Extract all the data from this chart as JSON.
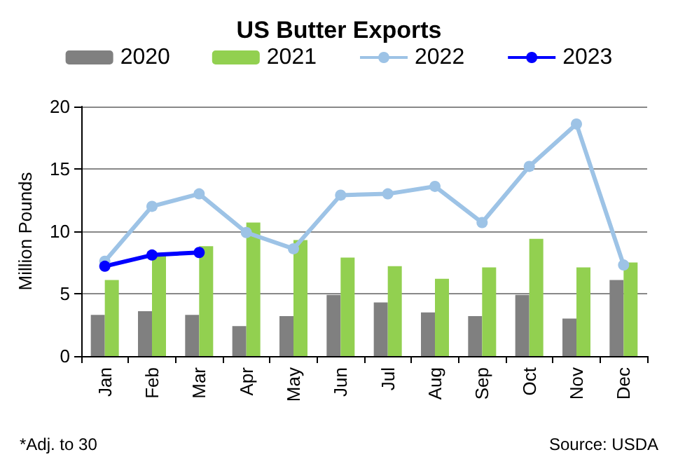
{
  "chart_data": {
    "type": "bar",
    "title": "US Butter Exports",
    "ylabel": "Million Pounds",
    "categories": [
      "Jan",
      "Feb",
      "Mar",
      "Apr",
      "May",
      "Jun",
      "Jul",
      "Aug",
      "Sep",
      "Oct",
      "Nov",
      "Dec"
    ],
    "series": [
      {
        "name": "2020",
        "color": "#808080",
        "values": [
          3.3,
          3.6,
          3.3,
          2.4,
          3.2,
          4.9,
          4.3,
          3.5,
          3.2,
          4.9,
          3.0,
          6.1
        ]
      },
      {
        "name": "2021",
        "color": "#92d050",
        "values": [
          6.1,
          8.1,
          8.8,
          10.7,
          9.3,
          7.9,
          7.2,
          6.2,
          7.1,
          9.4,
          7.1,
          7.5
        ]
      },
      {
        "name": "2022",
        "type": "line",
        "color": "#9dc3e6",
        "values": [
          7.6,
          12.0,
          13.0,
          9.9,
          8.6,
          12.9,
          13.0,
          13.6,
          10.7,
          15.2,
          18.6,
          7.3
        ]
      },
      {
        "name": "2023",
        "type": "line",
        "color": "#0000ff",
        "values": [
          7.2,
          8.1,
          8.3,
          null,
          null,
          null,
          null,
          null,
          null,
          null,
          null,
          null
        ]
      }
    ],
    "ylim": [
      0,
      20
    ],
    "yticks": [
      0,
      5,
      10,
      15,
      20
    ],
    "grid": "y",
    "legend": "top",
    "marker": "circle",
    "annotations": [
      "*Adj. to 30",
      "Source: USDA"
    ]
  }
}
